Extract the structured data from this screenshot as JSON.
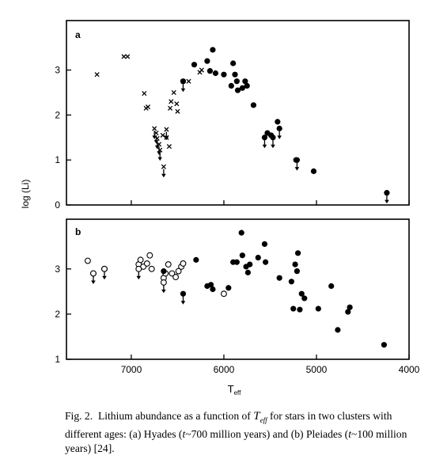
{
  "figure": {
    "caption_prefix": "Fig. 2.",
    "caption_text_1": "Lithium abundance as a function of ",
    "caption_var_T": "T",
    "caption_var_sub": "eff",
    "caption_text_2": " for stars in two clusters with different ages: (a) Hyades (",
    "caption_t1": "t",
    "caption_text_3": "~700 million years) and (b) Pleiades (",
    "caption_t2": "t",
    "caption_text_4": "~100 million years) [24]."
  },
  "chart_data": [
    {
      "type": "scatter",
      "panel_label": "a",
      "ylabel": "log (Li)",
      "xlabel_main": "T",
      "xlabel_sub": "eff",
      "xlim": [
        7700,
        4000
      ],
      "ylim": [
        0,
        4.1
      ],
      "x_ticks": [
        7000,
        6000,
        5000,
        4000
      ],
      "y_ticks": [
        0,
        1,
        2,
        3
      ],
      "series": [
        {
          "marker": "filled-circle",
          "points": [
            {
              "x": 6320,
              "y": 3.12
            },
            {
              "x": 6120,
              "y": 3.45
            },
            {
              "x": 6180,
              "y": 3.2
            },
            {
              "x": 6150,
              "y": 2.98
            },
            {
              "x": 6090,
              "y": 2.93
            },
            {
              "x": 6000,
              "y": 2.9
            },
            {
              "x": 5900,
              "y": 3.15
            },
            {
              "x": 5880,
              "y": 2.9
            },
            {
              "x": 5860,
              "y": 2.75
            },
            {
              "x": 5920,
              "y": 2.65
            },
            {
              "x": 5850,
              "y": 2.55
            },
            {
              "x": 5800,
              "y": 2.6
            },
            {
              "x": 5770,
              "y": 2.75
            },
            {
              "x": 5750,
              "y": 2.65
            },
            {
              "x": 5680,
              "y": 2.22
            },
            {
              "x": 5420,
              "y": 1.85
            },
            {
              "x": 5530,
              "y": 1.6
            },
            {
              "x": 5490,
              "y": 1.55
            },
            {
              "x": 5220,
              "y": 1.0
            },
            {
              "x": 5030,
              "y": 0.75
            }
          ]
        },
        {
          "marker": "filled-circle-upper-limit",
          "points": [
            {
              "x": 6440,
              "y": 2.75
            },
            {
              "x": 5560,
              "y": 1.5
            },
            {
              "x": 5470,
              "y": 1.5
            },
            {
              "x": 5400,
              "y": 1.7
            },
            {
              "x": 5210,
              "y": 1.0
            },
            {
              "x": 4240,
              "y": 0.27
            }
          ]
        },
        {
          "marker": "cross",
          "points": [
            {
              "x": 7370,
              "y": 2.9
            },
            {
              "x": 7080,
              "y": 3.3
            },
            {
              "x": 7040,
              "y": 3.3
            },
            {
              "x": 6860,
              "y": 2.48
            },
            {
              "x": 6820,
              "y": 2.18
            },
            {
              "x": 6840,
              "y": 2.15
            },
            {
              "x": 6660,
              "y": 1.55
            },
            {
              "x": 6620,
              "y": 1.5
            },
            {
              "x": 6590,
              "y": 1.3
            },
            {
              "x": 6570,
              "y": 2.3
            },
            {
              "x": 6580,
              "y": 2.15
            },
            {
              "x": 6540,
              "y": 2.5
            },
            {
              "x": 6510,
              "y": 2.25
            },
            {
              "x": 6500,
              "y": 2.08
            },
            {
              "x": 6440,
              "y": 2.75
            },
            {
              "x": 6380,
              "y": 2.75
            },
            {
              "x": 6260,
              "y": 2.95
            },
            {
              "x": 6240,
              "y": 3.0
            }
          ]
        },
        {
          "marker": "cross-upper-limit",
          "points": [
            {
              "x": 6750,
              "y": 1.7
            },
            {
              "x": 6730,
              "y": 1.6
            },
            {
              "x": 6720,
              "y": 1.48
            },
            {
              "x": 6700,
              "y": 1.35
            },
            {
              "x": 6690,
              "y": 1.22
            },
            {
              "x": 6650,
              "y": 0.85
            },
            {
              "x": 6620,
              "y": 1.68
            }
          ]
        }
      ]
    },
    {
      "type": "scatter",
      "panel_label": "b",
      "ylabel": "",
      "xlabel_main": "T",
      "xlabel_sub": "eff",
      "xlim": [
        7700,
        4000
      ],
      "ylim": [
        1,
        4.1
      ],
      "x_ticks": [
        7000,
        6000,
        5000,
        4000
      ],
      "x_tick_labels": [
        "7000",
        "6000",
        "5000",
        "4000"
      ],
      "y_ticks": [
        1,
        2,
        3
      ],
      "series": [
        {
          "marker": "open-circle",
          "points": [
            {
              "x": 7470,
              "y": 3.18
            },
            {
              "x": 7410,
              "y": 2.9
            },
            {
              "x": 7290,
              "y": 3.0
            },
            {
              "x": 6920,
              "y": 3.1
            },
            {
              "x": 6900,
              "y": 3.2
            },
            {
              "x": 6870,
              "y": 3.05
            },
            {
              "x": 6830,
              "y": 3.12
            },
            {
              "x": 6800,
              "y": 3.3
            },
            {
              "x": 6780,
              "y": 3.0
            },
            {
              "x": 6650,
              "y": 2.8
            },
            {
              "x": 6630,
              "y": 2.9
            },
            {
              "x": 6600,
              "y": 3.1
            },
            {
              "x": 6560,
              "y": 2.9
            },
            {
              "x": 6520,
              "y": 2.82
            },
            {
              "x": 6490,
              "y": 2.95
            },
            {
              "x": 6460,
              "y": 3.05
            },
            {
              "x": 6440,
              "y": 3.12
            },
            {
              "x": 6000,
              "y": 2.45
            }
          ]
        },
        {
          "marker": "open-circle-upper-limit",
          "points": [
            {
              "x": 7410,
              "y": 2.9
            },
            {
              "x": 7290,
              "y": 3.0
            },
            {
              "x": 6920,
              "y": 3.0
            },
            {
              "x": 6650,
              "y": 2.7
            }
          ]
        },
        {
          "marker": "filled-circle",
          "points": [
            {
              "x": 6650,
              "y": 2.95
            },
            {
              "x": 6300,
              "y": 3.2
            },
            {
              "x": 6180,
              "y": 2.62
            },
            {
              "x": 6140,
              "y": 2.65
            },
            {
              "x": 6120,
              "y": 2.55
            },
            {
              "x": 5950,
              "y": 2.58
            },
            {
              "x": 5810,
              "y": 3.8
            },
            {
              "x": 5900,
              "y": 3.15
            },
            {
              "x": 5860,
              "y": 3.15
            },
            {
              "x": 5800,
              "y": 3.3
            },
            {
              "x": 5760,
              "y": 3.05
            },
            {
              "x": 5740,
              "y": 2.92
            },
            {
              "x": 5720,
              "y": 3.1
            },
            {
              "x": 5630,
              "y": 3.25
            },
            {
              "x": 5560,
              "y": 3.55
            },
            {
              "x": 5550,
              "y": 3.15
            },
            {
              "x": 5400,
              "y": 2.8
            },
            {
              "x": 5270,
              "y": 2.72
            },
            {
              "x": 5230,
              "y": 3.1
            },
            {
              "x": 5210,
              "y": 2.95
            },
            {
              "x": 5200,
              "y": 3.35
            },
            {
              "x": 5250,
              "y": 2.12
            },
            {
              "x": 5180,
              "y": 2.1
            },
            {
              "x": 5160,
              "y": 2.45
            },
            {
              "x": 5130,
              "y": 2.35
            },
            {
              "x": 4980,
              "y": 2.12
            },
            {
              "x": 4840,
              "y": 2.62
            },
            {
              "x": 4660,
              "y": 2.05
            },
            {
              "x": 4640,
              "y": 2.15
            },
            {
              "x": 4770,
              "y": 1.65
            },
            {
              "x": 4270,
              "y": 1.32
            }
          ]
        },
        {
          "marker": "filled-circle-upper-limit",
          "points": [
            {
              "x": 6440,
              "y": 2.45
            }
          ]
        }
      ]
    }
  ]
}
